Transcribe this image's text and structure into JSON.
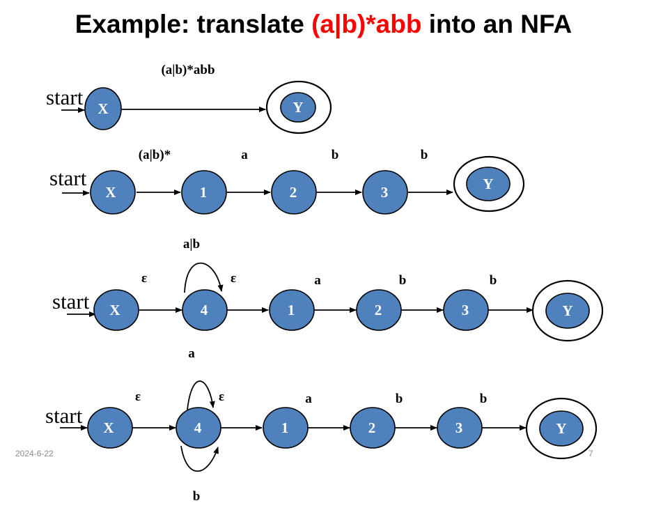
{
  "title": {
    "prefix": "Example: translate ",
    "highlight": "(a|b)*abb",
    "suffix": " into an NFA",
    "highlight_color": "#ff0000"
  },
  "colors": {
    "state_fill": "#4f81bd",
    "text": "#000000"
  },
  "start_label": "start",
  "diagrams": [
    {
      "states": [
        "X",
        "Y"
      ],
      "final": "Y",
      "transitions": [
        {
          "from": "X",
          "to": "Y",
          "label": "(a|b)*abb"
        }
      ]
    },
    {
      "states": [
        "X",
        "1",
        "2",
        "3",
        "Y"
      ],
      "final": "Y",
      "transitions": [
        {
          "from": "X",
          "to": "1",
          "label": "(a|b)*"
        },
        {
          "from": "1",
          "to": "2",
          "label": "a"
        },
        {
          "from": "2",
          "to": "3",
          "label": "b"
        },
        {
          "from": "3",
          "to": "Y",
          "label": "b"
        }
      ]
    },
    {
      "states": [
        "X",
        "4",
        "1",
        "2",
        "3",
        "Y"
      ],
      "final": "Y",
      "transitions": [
        {
          "from": "X",
          "to": "4",
          "label": "ε"
        },
        {
          "from": "4",
          "to": "4",
          "label": "a|b"
        },
        {
          "from": "4",
          "to": "1",
          "label": "ε"
        },
        {
          "from": "1",
          "to": "2",
          "label": "a"
        },
        {
          "from": "2",
          "to": "3",
          "label": "b"
        },
        {
          "from": "3",
          "to": "Y",
          "label": "b"
        }
      ]
    },
    {
      "states": [
        "X",
        "4",
        "1",
        "2",
        "3",
        "Y"
      ],
      "final": "Y",
      "transitions": [
        {
          "from": "X",
          "to": "4",
          "label": "ε"
        },
        {
          "from": "4",
          "to": "4",
          "label": "a"
        },
        {
          "from": "4",
          "to": "4",
          "label": "b"
        },
        {
          "from": "4",
          "to": "1",
          "label": "ε"
        },
        {
          "from": "1",
          "to": "2",
          "label": "a"
        },
        {
          "from": "2",
          "to": "3",
          "label": "b"
        },
        {
          "from": "3",
          "to": "Y",
          "label": "b"
        }
      ]
    }
  ],
  "footer": {
    "date": "2024-6-22",
    "page": "7"
  }
}
